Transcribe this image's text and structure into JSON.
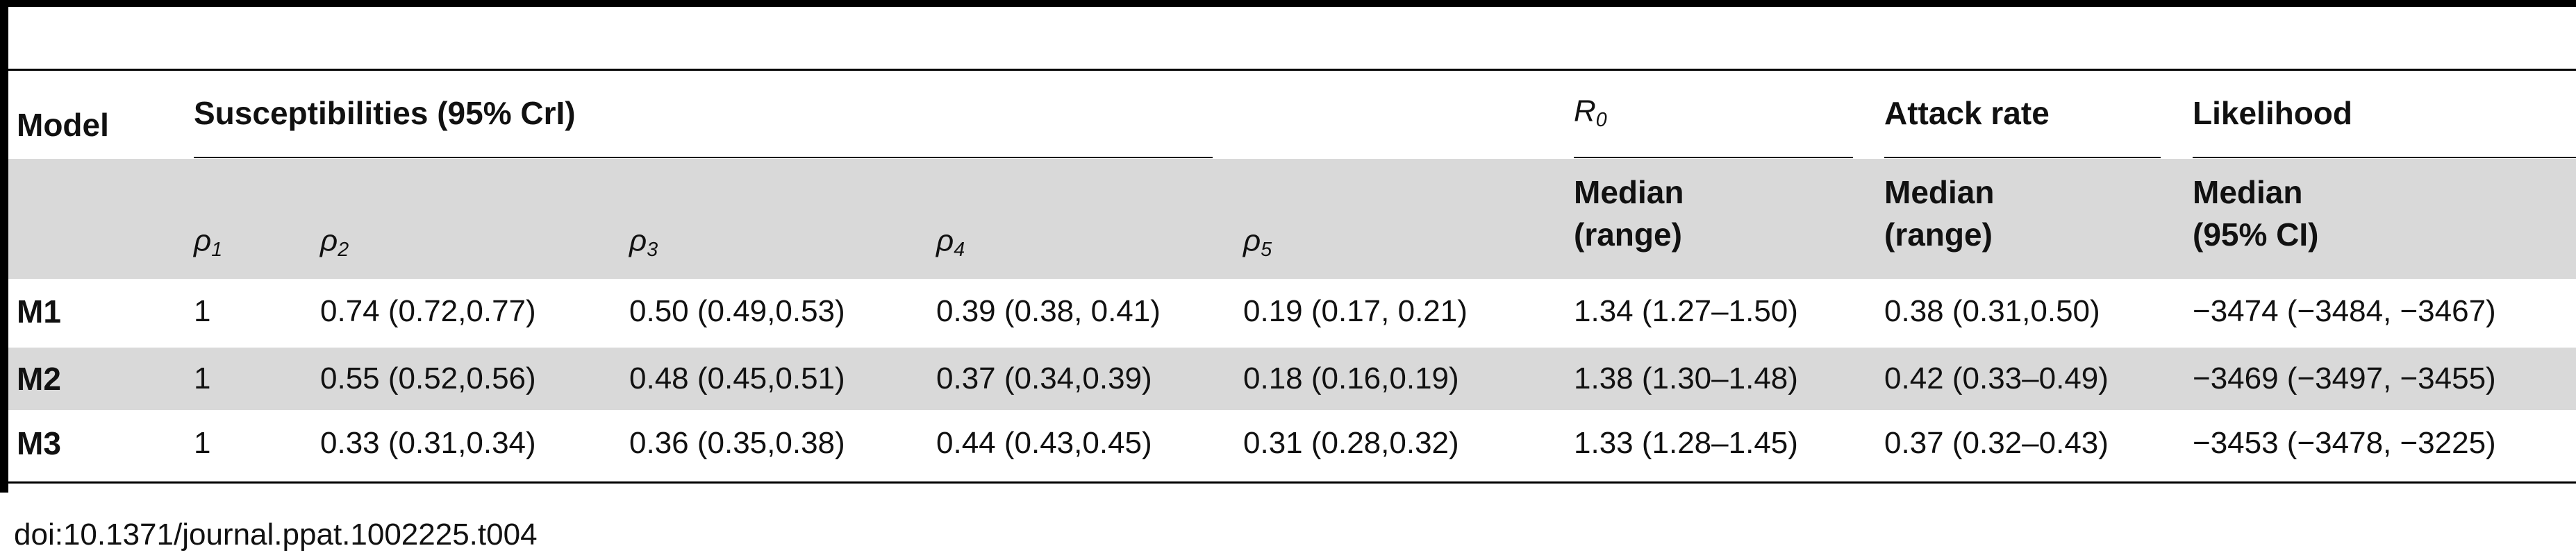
{
  "header": {
    "model": "Model",
    "susceptibilities": "Susceptibilities (95% CrI)",
    "r0": {
      "symbol": "R",
      "sub": "0"
    },
    "attack_rate": "Attack rate",
    "likelihood": "Likelihood"
  },
  "subheader": {
    "rho": [
      {
        "symbol": "ρ",
        "sub": "1"
      },
      {
        "symbol": "ρ",
        "sub": "2"
      },
      {
        "symbol": "ρ",
        "sub": "3"
      },
      {
        "symbol": "ρ",
        "sub": "4"
      },
      {
        "symbol": "ρ",
        "sub": "5"
      }
    ],
    "r0": [
      "Median",
      "(range)"
    ],
    "attack_rate": [
      "Median",
      "(range)"
    ],
    "likelihood": [
      "Median",
      "(95% CI)"
    ]
  },
  "rows": [
    [
      "M1",
      "1",
      "0.74 (0.72,0.77)",
      "0.50 (0.49,0.53)",
      "0.39 (0.38, 0.41)",
      "0.19 (0.17, 0.21)",
      "1.34 (1.27–1.50)",
      "0.38 (0.31,0.50)",
      "−3474 (−3484, −3467)"
    ],
    [
      "M2",
      "1",
      "0.55 (0.52,0.56)",
      "0.48 (0.45,0.51)",
      "0.37 (0.34,0.39)",
      "0.18 (0.16,0.19)",
      "1.38 (1.30–1.48)",
      "0.42 (0.33–0.49)",
      "−3469 (−3497, −3455)"
    ],
    [
      "M3",
      "1",
      "0.33 (0.31,0.34)",
      "0.36 (0.35,0.38)",
      "0.44 (0.43,0.45)",
      "0.31 (0.28,0.32)",
      "1.33 (1.28–1.45)",
      "0.37 (0.32–0.43)",
      "−3453 (−3478, −3225)"
    ]
  ],
  "footer": "doi:10.1371/journal.ppat.1002225.t004"
}
